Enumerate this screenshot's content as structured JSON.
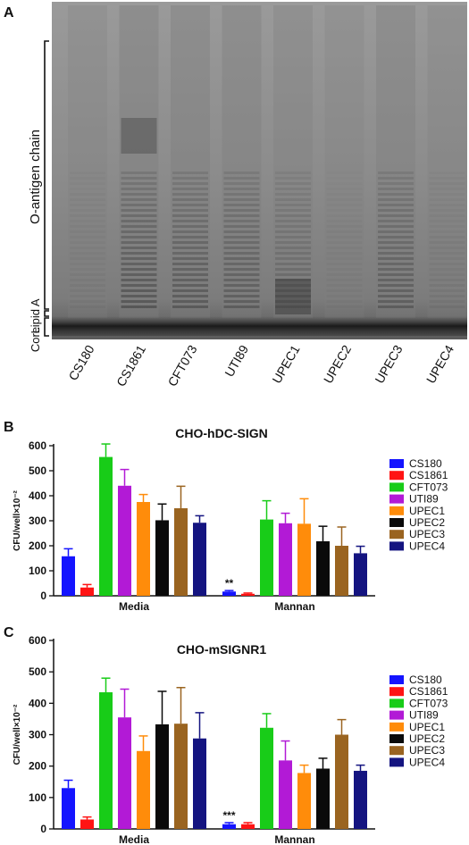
{
  "panels": {
    "a": "A",
    "b": "B",
    "c": "C"
  },
  "gel": {
    "side_labels": {
      "o_antigen": "O-antigen chain",
      "lipid_a": "Lipid A",
      "core": "Core"
    },
    "lanes": [
      "CS180",
      "CS1861",
      "CFT073",
      "UTI89",
      "UPEC1",
      "UPEC2",
      "UPEC3",
      "UPEC4"
    ]
  },
  "colors": {
    "CS180": "#1414ff",
    "CS1861": "#ff1414",
    "CFT073": "#18cc18",
    "UTI89": "#b21ad6",
    "UPEC1": "#ff8c0a",
    "UPEC2": "#0a0a0a",
    "UPEC3": "#9a6420",
    "UPEC4": "#141480"
  },
  "chart_data": [
    {
      "type": "bar",
      "title": "CHO-hDC-SIGN",
      "ylabel": "CFU/well×10⁻²",
      "ylim": [
        0,
        600
      ],
      "yticks": [
        0,
        100,
        200,
        300,
        400,
        500,
        600
      ],
      "categories": [
        "Media",
        "Mannan"
      ],
      "series": [
        {
          "name": "CS180",
          "values": [
            158,
            17
          ],
          "errors": [
            30,
            4
          ]
        },
        {
          "name": "CS1861",
          "values": [
            33,
            8
          ],
          "errors": [
            12,
            3
          ]
        },
        {
          "name": "CFT073",
          "values": [
            555,
            305
          ],
          "errors": [
            52,
            75
          ]
        },
        {
          "name": "UTI89",
          "values": [
            440,
            290
          ],
          "errors": [
            65,
            40
          ]
        },
        {
          "name": "UPEC1",
          "values": [
            375,
            288
          ],
          "errors": [
            30,
            100
          ]
        },
        {
          "name": "UPEC2",
          "values": [
            302,
            218
          ],
          "errors": [
            65,
            60
          ]
        },
        {
          "name": "UPEC3",
          "values": [
            350,
            200
          ],
          "errors": [
            88,
            75
          ]
        },
        {
          "name": "UPEC4",
          "values": [
            292,
            170
          ],
          "errors": [
            28,
            28
          ]
        }
      ],
      "annotations": [
        {
          "category": "Mannan",
          "series": "CS180",
          "text": "**"
        }
      ],
      "legend": "right"
    },
    {
      "type": "bar",
      "title": "CHO-mSIGNR1",
      "ylabel": "CFU/well×10⁻²",
      "ylim": [
        0,
        600
      ],
      "yticks": [
        0,
        100,
        200,
        300,
        400,
        500,
        600
      ],
      "categories": [
        "Media",
        "Mannan"
      ],
      "series": [
        {
          "name": "CS180",
          "values": [
            130,
            15
          ],
          "errors": [
            25,
            5
          ]
        },
        {
          "name": "CS1861",
          "values": [
            30,
            15
          ],
          "errors": [
            8,
            5
          ]
        },
        {
          "name": "CFT073",
          "values": [
            435,
            322
          ],
          "errors": [
            45,
            45
          ]
        },
        {
          "name": "UTI89",
          "values": [
            355,
            218
          ],
          "errors": [
            90,
            62
          ]
        },
        {
          "name": "UPEC1",
          "values": [
            248,
            178
          ],
          "errors": [
            48,
            25
          ]
        },
        {
          "name": "UPEC2",
          "values": [
            333,
            192
          ],
          "errors": [
            105,
            33
          ]
        },
        {
          "name": "UPEC3",
          "values": [
            335,
            300
          ],
          "errors": [
            115,
            48
          ]
        },
        {
          "name": "UPEC4",
          "values": [
            288,
            185
          ],
          "errors": [
            82,
            18
          ]
        }
      ],
      "annotations": [
        {
          "category": "Mannan",
          "series": "CS180",
          "text": "***"
        }
      ],
      "legend": "right"
    }
  ]
}
